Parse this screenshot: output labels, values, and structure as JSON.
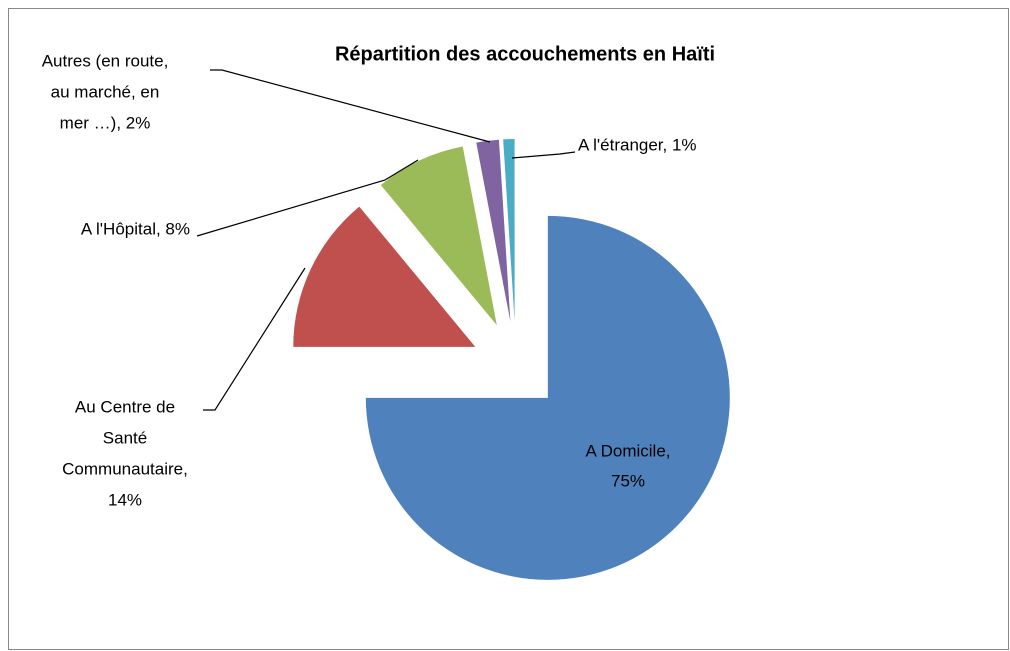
{
  "chart_data": {
    "type": "pie",
    "title": "Répartition des accouchements en Haïti",
    "labels": [
      [
        "A Domicile,",
        "75%"
      ],
      [
        "Au Centre de",
        "Santé",
        "Communautaire,",
        "14%"
      ],
      [
        "A l'Hôpital, 8%"
      ],
      [
        "Autres (en route,",
        "au marché, en",
        "mer …), 2%"
      ],
      [
        "A l'étranger, 1%"
      ]
    ],
    "values": [
      75,
      14,
      8,
      2,
      1
    ],
    "colors": [
      "#4f81bd",
      "#c0504d",
      "#9bbb59",
      "#8064a2",
      "#4bacc6"
    ]
  }
}
